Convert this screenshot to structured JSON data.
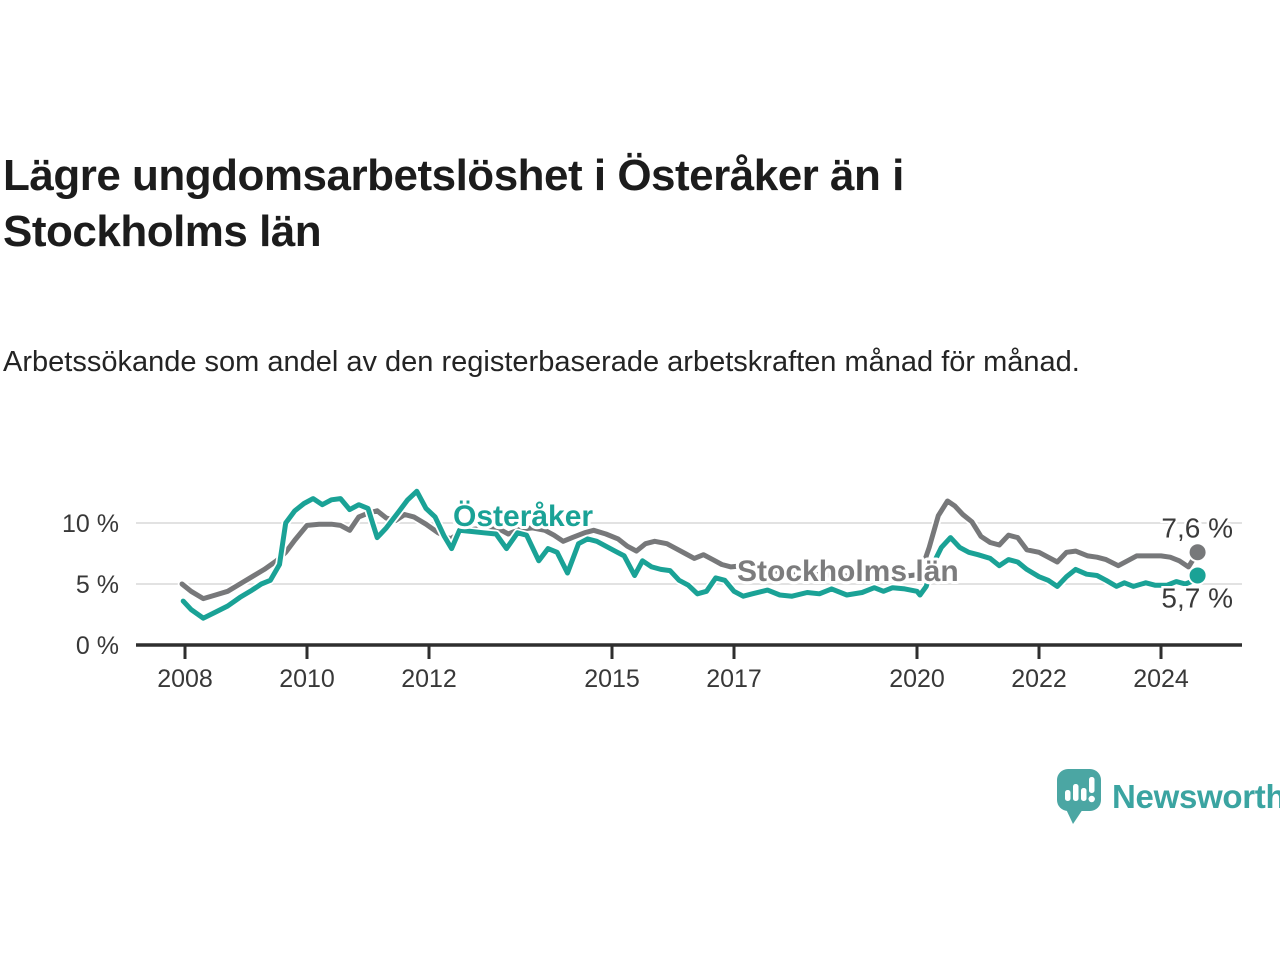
{
  "title": "Lägre ungdomsarbetslöshet i Österåker än i Stockholms län",
  "subtitle": "Arbetssökande som andel av den registerbaserade arbetskraften månad för månad.",
  "branding": {
    "logo_text": "Newsworthy",
    "logo_color": "#4ba6a3",
    "logo_icon": "bar-chart-speech-bubble-icon"
  },
  "chart_data": {
    "type": "line",
    "title": "",
    "xlabel": "",
    "ylabel": "",
    "unit": "%",
    "grid": "horizontal",
    "legend_position": "inline-labels",
    "xlim": [
      2007.8,
      2025.3
    ],
    "ylim": [
      0,
      13.5
    ],
    "x_ticks": [
      {
        "value": 2008,
        "label": "2008"
      },
      {
        "value": 2010,
        "label": "2010"
      },
      {
        "value": 2012,
        "label": "2012"
      },
      {
        "value": 2015,
        "label": "2015"
      },
      {
        "value": 2017,
        "label": "2017"
      },
      {
        "value": 2020,
        "label": "2020"
      },
      {
        "value": 2022,
        "label": "2022"
      },
      {
        "value": 2024,
        "label": "2024"
      }
    ],
    "y_ticks": [
      {
        "value": 0,
        "label": "0 %"
      },
      {
        "value": 5,
        "label": "5 %"
      },
      {
        "value": 10,
        "label": "10 %"
      }
    ],
    "series": [
      {
        "name": "Stockholms län",
        "color": "#77787a",
        "label_color": "#7c7c7d",
        "end_label": "7,6 %",
        "end_value": 7.6,
        "points": [
          [
            2007.95,
            5.0
          ],
          [
            2008.1,
            4.4
          ],
          [
            2008.3,
            3.8
          ],
          [
            2008.5,
            4.1
          ],
          [
            2008.7,
            4.4
          ],
          [
            2008.9,
            5.0
          ],
          [
            2009.1,
            5.6
          ],
          [
            2009.3,
            6.2
          ],
          [
            2009.5,
            6.9
          ],
          [
            2009.65,
            7.6
          ],
          [
            2009.8,
            8.6
          ],
          [
            2010.0,
            9.8
          ],
          [
            2010.2,
            9.9
          ],
          [
            2010.4,
            9.9
          ],
          [
            2010.55,
            9.8
          ],
          [
            2010.7,
            9.4
          ],
          [
            2010.85,
            10.5
          ],
          [
            2011.0,
            10.8
          ],
          [
            2011.15,
            11.0
          ],
          [
            2011.3,
            10.4
          ],
          [
            2011.45,
            10.2
          ],
          [
            2011.6,
            10.7
          ],
          [
            2011.75,
            10.5
          ],
          [
            2011.95,
            9.9
          ],
          [
            2012.15,
            9.2
          ],
          [
            2012.35,
            8.7
          ],
          [
            2012.55,
            9.3
          ],
          [
            2012.75,
            9.5
          ],
          [
            2012.95,
            9.6
          ],
          [
            2013.15,
            9.5
          ],
          [
            2013.3,
            9.1
          ],
          [
            2013.5,
            9.5
          ],
          [
            2013.7,
            9.6
          ],
          [
            2013.9,
            9.4
          ],
          [
            2014.05,
            9.0
          ],
          [
            2014.2,
            8.5
          ],
          [
            2014.35,
            8.8
          ],
          [
            2014.55,
            9.2
          ],
          [
            2014.7,
            9.4
          ],
          [
            2014.9,
            9.1
          ],
          [
            2015.1,
            8.7
          ],
          [
            2015.25,
            8.1
          ],
          [
            2015.4,
            7.7
          ],
          [
            2015.55,
            8.3
          ],
          [
            2015.7,
            8.5
          ],
          [
            2015.9,
            8.3
          ],
          [
            2016.05,
            7.9
          ],
          [
            2016.2,
            7.5
          ],
          [
            2016.35,
            7.1
          ],
          [
            2016.5,
            7.4
          ],
          [
            2016.65,
            7.0
          ],
          [
            2016.8,
            6.6
          ],
          [
            2016.95,
            6.4
          ],
          [
            2017.15,
            6.5
          ],
          [
            2017.35,
            6.3
          ],
          [
            2017.55,
            6.2
          ],
          [
            2017.75,
            6.0
          ],
          [
            2017.95,
            5.9
          ],
          [
            2018.2,
            5.9
          ],
          [
            2018.45,
            5.7
          ],
          [
            2018.7,
            5.8
          ],
          [
            2018.9,
            5.6
          ],
          [
            2019.1,
            5.5
          ],
          [
            2019.3,
            5.6
          ],
          [
            2019.5,
            5.5
          ],
          [
            2019.7,
            5.6
          ],
          [
            2019.9,
            5.7
          ],
          [
            2020.05,
            5.8
          ],
          [
            2020.2,
            8.0
          ],
          [
            2020.35,
            10.6
          ],
          [
            2020.5,
            11.8
          ],
          [
            2020.62,
            11.4
          ],
          [
            2020.75,
            10.7
          ],
          [
            2020.9,
            10.1
          ],
          [
            2021.05,
            8.9
          ],
          [
            2021.2,
            8.4
          ],
          [
            2021.35,
            8.2
          ],
          [
            2021.5,
            9.0
          ],
          [
            2021.65,
            8.8
          ],
          [
            2021.8,
            7.8
          ],
          [
            2022.0,
            7.6
          ],
          [
            2022.15,
            7.2
          ],
          [
            2022.3,
            6.8
          ],
          [
            2022.45,
            7.6
          ],
          [
            2022.6,
            7.7
          ],
          [
            2022.8,
            7.3
          ],
          [
            2022.95,
            7.2
          ],
          [
            2023.1,
            7.0
          ],
          [
            2023.3,
            6.5
          ],
          [
            2023.45,
            6.9
          ],
          [
            2023.6,
            7.3
          ],
          [
            2023.8,
            7.3
          ],
          [
            2024.0,
            7.3
          ],
          [
            2024.15,
            7.2
          ],
          [
            2024.3,
            6.9
          ],
          [
            2024.45,
            6.4
          ],
          [
            2024.6,
            7.6
          ]
        ]
      },
      {
        "name": "Österåker",
        "color": "#1aa296",
        "label_color": "#1aa296",
        "end_label": "5,7 %",
        "end_value": 5.7,
        "points": [
          [
            2007.97,
            3.6
          ],
          [
            2008.1,
            2.9
          ],
          [
            2008.3,
            2.2
          ],
          [
            2008.5,
            2.7
          ],
          [
            2008.7,
            3.2
          ],
          [
            2008.9,
            3.9
          ],
          [
            2009.1,
            4.5
          ],
          [
            2009.25,
            5.0
          ],
          [
            2009.4,
            5.3
          ],
          [
            2009.55,
            6.6
          ],
          [
            2009.65,
            10.0
          ],
          [
            2009.8,
            11.0
          ],
          [
            2009.95,
            11.6
          ],
          [
            2010.1,
            12.0
          ],
          [
            2010.25,
            11.5
          ],
          [
            2010.4,
            11.9
          ],
          [
            2010.55,
            12.0
          ],
          [
            2010.7,
            11.1
          ],
          [
            2010.85,
            11.5
          ],
          [
            2011.0,
            11.2
          ],
          [
            2011.15,
            8.8
          ],
          [
            2011.3,
            9.6
          ],
          [
            2011.5,
            10.9
          ],
          [
            2011.65,
            11.9
          ],
          [
            2011.8,
            12.6
          ],
          [
            2011.95,
            11.2
          ],
          [
            2012.1,
            10.5
          ],
          [
            2012.25,
            8.9
          ],
          [
            2012.37,
            7.9
          ],
          [
            2012.5,
            9.4
          ],
          [
            2012.7,
            9.3
          ],
          [
            2012.9,
            9.2
          ],
          [
            2013.1,
            9.1
          ],
          [
            2013.27,
            7.9
          ],
          [
            2013.45,
            9.2
          ],
          [
            2013.6,
            9.0
          ],
          [
            2013.8,
            6.9
          ],
          [
            2013.95,
            7.9
          ],
          [
            2014.1,
            7.6
          ],
          [
            2014.27,
            5.9
          ],
          [
            2014.45,
            8.3
          ],
          [
            2014.6,
            8.7
          ],
          [
            2014.75,
            8.5
          ],
          [
            2014.9,
            8.1
          ],
          [
            2015.05,
            7.7
          ],
          [
            2015.2,
            7.3
          ],
          [
            2015.37,
            5.7
          ],
          [
            2015.5,
            6.9
          ],
          [
            2015.65,
            6.4
          ],
          [
            2015.8,
            6.2
          ],
          [
            2015.95,
            6.1
          ],
          [
            2016.1,
            5.3
          ],
          [
            2016.25,
            4.9
          ],
          [
            2016.4,
            4.2
          ],
          [
            2016.55,
            4.4
          ],
          [
            2016.7,
            5.5
          ],
          [
            2016.85,
            5.3
          ],
          [
            2017.0,
            4.4
          ],
          [
            2017.15,
            4.0
          ],
          [
            2017.3,
            4.2
          ],
          [
            2017.55,
            4.5
          ],
          [
            2017.75,
            4.1
          ],
          [
            2017.95,
            4.0
          ],
          [
            2018.2,
            4.3
          ],
          [
            2018.4,
            4.2
          ],
          [
            2018.6,
            4.6
          ],
          [
            2018.85,
            4.1
          ],
          [
            2019.1,
            4.3
          ],
          [
            2019.3,
            4.7
          ],
          [
            2019.45,
            4.4
          ],
          [
            2019.6,
            4.7
          ],
          [
            2019.8,
            4.6
          ],
          [
            2020.0,
            4.4
          ],
          [
            2020.05,
            4.1
          ],
          [
            2020.15,
            4.8
          ],
          [
            2020.25,
            6.5
          ],
          [
            2020.4,
            8.0
          ],
          [
            2020.55,
            8.8
          ],
          [
            2020.7,
            8.0
          ],
          [
            2020.85,
            7.6
          ],
          [
            2021.0,
            7.4
          ],
          [
            2021.2,
            7.1
          ],
          [
            2021.35,
            6.5
          ],
          [
            2021.5,
            7.0
          ],
          [
            2021.65,
            6.8
          ],
          [
            2021.8,
            6.2
          ],
          [
            2022.0,
            5.6
          ],
          [
            2022.15,
            5.3
          ],
          [
            2022.3,
            4.8
          ],
          [
            2022.45,
            5.6
          ],
          [
            2022.6,
            6.2
          ],
          [
            2022.78,
            5.8
          ],
          [
            2022.95,
            5.7
          ],
          [
            2023.1,
            5.3
          ],
          [
            2023.27,
            4.8
          ],
          [
            2023.4,
            5.1
          ],
          [
            2023.55,
            4.8
          ],
          [
            2023.75,
            5.1
          ],
          [
            2023.9,
            4.9
          ],
          [
            2024.1,
            4.9
          ],
          [
            2024.25,
            5.2
          ],
          [
            2024.4,
            5.0
          ],
          [
            2024.5,
            5.2
          ],
          [
            2024.6,
            5.7
          ]
        ]
      }
    ]
  }
}
